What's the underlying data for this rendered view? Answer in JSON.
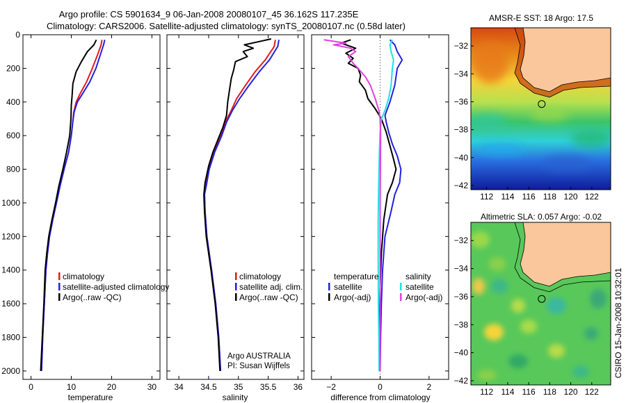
{
  "header": {
    "line1": "Argo profile: CS 5901634_9 06-Jan-2008 20080107_45 36.162S 117.235E",
    "line2": "Climatology: CARS2006. Satellite-adjusted climatology: synTS_20080107.nc (0.58d later)"
  },
  "side_label": "CSIRO 15-Jan-2008 10:32:01",
  "colors": {
    "climatology": "#e31a1c",
    "satellite": "#2020e0",
    "argo": "#000000",
    "salinity_satellite": "#22e0e0",
    "salinity_argo": "#e040e0",
    "land": "#f9c79b"
  },
  "chart_data": [
    {
      "type": "line",
      "panel": "temperature",
      "xlabel": "temperature",
      "ylabel": "",
      "xlim": [
        -2,
        32
      ],
      "ylim": [
        2050,
        0
      ],
      "xticks": [
        0,
        10,
        20,
        30
      ],
      "yticks": [
        0,
        200,
        400,
        600,
        800,
        1000,
        1200,
        1400,
        1600,
        1800,
        2000
      ],
      "legend": [
        "climatology",
        "satellite-adjusted climatology",
        "Argo(..raw -QC)"
      ],
      "series": [
        {
          "name": "climatology",
          "color_key": "climatology",
          "points": [
            [
              17.6,
              30
            ],
            [
              17.4,
              60
            ],
            [
              16.5,
              120
            ],
            [
              15.2,
              200
            ],
            [
              13.8,
              280
            ],
            [
              12.2,
              350
            ],
            [
              11.2,
              400
            ],
            [
              10.6,
              460
            ],
            [
              10.3,
              530
            ],
            [
              10.0,
              600
            ],
            [
              9.3,
              700
            ],
            [
              8.2,
              800
            ],
            [
              7.2,
              900
            ],
            [
              6.3,
              1000
            ],
            [
              5.4,
              1100
            ],
            [
              4.6,
              1200
            ],
            [
              4.1,
              1300
            ],
            [
              3.7,
              1400
            ],
            [
              3.3,
              1600
            ],
            [
              2.9,
              1800
            ],
            [
              2.6,
              2000
            ]
          ]
        },
        {
          "name": "satellite-adjusted climatology",
          "color_key": "satellite",
          "points": [
            [
              18.3,
              30
            ],
            [
              18.0,
              60
            ],
            [
              17.2,
              120
            ],
            [
              16.1,
              200
            ],
            [
              14.6,
              280
            ],
            [
              12.8,
              350
            ],
            [
              11.5,
              400
            ],
            [
              10.7,
              460
            ],
            [
              10.3,
              530
            ],
            [
              10.0,
              600
            ],
            [
              9.3,
              700
            ],
            [
              8.2,
              800
            ],
            [
              7.2,
              900
            ],
            [
              6.3,
              1000
            ],
            [
              5.4,
              1100
            ],
            [
              4.6,
              1200
            ],
            [
              4.1,
              1300
            ],
            [
              3.7,
              1400
            ],
            [
              3.3,
              1600
            ],
            [
              2.9,
              1800
            ],
            [
              2.6,
              2000
            ]
          ]
        },
        {
          "name": "Argo(..raw -QC)",
          "color_key": "argo",
          "points": [
            [
              16.2,
              30
            ],
            [
              15.6,
              60
            ],
            [
              14.0,
              100
            ],
            [
              12.5,
              160
            ],
            [
              11.2,
              220
            ],
            [
              10.4,
              290
            ],
            [
              10.2,
              360
            ],
            [
              10.0,
              420
            ],
            [
              9.9,
              500
            ],
            [
              9.6,
              600
            ],
            [
              8.8,
              700
            ],
            [
              7.9,
              800
            ],
            [
              6.9,
              900
            ],
            [
              6.1,
              1000
            ],
            [
              5.2,
              1100
            ],
            [
              4.4,
              1200
            ],
            [
              3.9,
              1300
            ],
            [
              3.5,
              1400
            ],
            [
              3.2,
              1600
            ],
            [
              2.8,
              1800
            ],
            [
              2.4,
              2000
            ]
          ]
        }
      ]
    },
    {
      "type": "line",
      "panel": "salinity",
      "xlabel": "salinity",
      "xlim": [
        33.8,
        36.1
      ],
      "ylim": [
        2050,
        0
      ],
      "xticks": [
        34,
        34.5,
        35,
        35.5,
        36
      ],
      "legend": [
        "climatology",
        "satellite adj. clim.",
        "Argo(..raw -QC)"
      ],
      "annotation": [
        "Argo AUSTRALIA",
        "PI: Susan Wijffels"
      ],
      "series": [
        {
          "name": "climatology",
          "color_key": "climatology",
          "points": [
            [
              35.62,
              30
            ],
            [
              35.6,
              70
            ],
            [
              35.45,
              150
            ],
            [
              35.28,
              220
            ],
            [
              35.12,
              300
            ],
            [
              34.97,
              380
            ],
            [
              34.88,
              450
            ],
            [
              34.78,
              520
            ],
            [
              34.7,
              600
            ],
            [
              34.58,
              700
            ],
            [
              34.5,
              800
            ],
            [
              34.45,
              900
            ],
            [
              34.43,
              950
            ],
            [
              34.44,
              1050
            ],
            [
              34.47,
              1200
            ],
            [
              34.55,
              1400
            ],
            [
              34.62,
              1600
            ],
            [
              34.67,
              1800
            ],
            [
              34.7,
              2000
            ]
          ]
        },
        {
          "name": "satellite adj. clim.",
          "color_key": "satellite",
          "points": [
            [
              35.68,
              30
            ],
            [
              35.66,
              70
            ],
            [
              35.52,
              150
            ],
            [
              35.35,
              220
            ],
            [
              35.18,
              300
            ],
            [
              35.02,
              380
            ],
            [
              34.9,
              450
            ],
            [
              34.8,
              520
            ],
            [
              34.72,
              600
            ],
            [
              34.6,
              700
            ],
            [
              34.51,
              800
            ],
            [
              34.46,
              900
            ],
            [
              34.43,
              950
            ],
            [
              34.44,
              1050
            ],
            [
              34.47,
              1200
            ],
            [
              34.55,
              1400
            ],
            [
              34.62,
              1600
            ],
            [
              34.67,
              1800
            ],
            [
              34.7,
              2000
            ]
          ]
        },
        {
          "name": "Argo(..raw -QC)",
          "color_key": "argo",
          "points": [
            [
              35.55,
              25
            ],
            [
              35.1,
              60
            ],
            [
              35.25,
              80
            ],
            [
              35.08,
              100
            ],
            [
              35.15,
              130
            ],
            [
              34.95,
              160
            ],
            [
              34.92,
              210
            ],
            [
              34.88,
              260
            ],
            [
              34.85,
              330
            ],
            [
              34.82,
              400
            ],
            [
              34.8,
              480
            ],
            [
              34.74,
              550
            ],
            [
              34.66,
              620
            ],
            [
              34.57,
              700
            ],
            [
              34.5,
              780
            ],
            [
              34.44,
              880
            ],
            [
              34.42,
              950
            ],
            [
              34.43,
              1050
            ],
            [
              34.46,
              1200
            ],
            [
              34.54,
              1400
            ],
            [
              34.61,
              1600
            ],
            [
              34.66,
              1800
            ],
            [
              34.69,
              2000
            ]
          ]
        }
      ]
    },
    {
      "type": "line",
      "panel": "difference",
      "xlabel": "difference from climatology",
      "xlim": [
        -2.8,
        2.8
      ],
      "ylim": [
        2050,
        0
      ],
      "xticks": [
        -2,
        0,
        2
      ],
      "legend_left_title": "temperature",
      "legend_right_title": "salinity",
      "legend": [
        "satellite",
        "Argo(-adj)",
        "satellite",
        "Argo(-adj)"
      ],
      "series": [
        {
          "name": "satellite",
          "color_key": "satellite",
          "points": [
            [
              0.4,
              30
            ],
            [
              0.6,
              60
            ],
            [
              0.7,
              100
            ],
            [
              0.9,
              150
            ],
            [
              0.7,
              200
            ],
            [
              0.6,
              300
            ],
            [
              0.4,
              400
            ],
            [
              0.2,
              480
            ],
            [
              0.25,
              520
            ],
            [
              0.35,
              580
            ],
            [
              0.5,
              650
            ],
            [
              0.7,
              720
            ],
            [
              0.85,
              800
            ],
            [
              0.8,
              880
            ],
            [
              0.6,
              950
            ],
            [
              0.45,
              1050
            ],
            [
              0.2,
              1200
            ],
            [
              0.1,
              1400
            ],
            [
              0.05,
              1600
            ],
            [
              0.02,
              1800
            ],
            [
              0.0,
              2000
            ]
          ]
        },
        {
          "name": "Argo(-adj)",
          "color_key": "argo",
          "points": [
            [
              -1.2,
              30
            ],
            [
              -1.6,
              50
            ],
            [
              -1.0,
              80
            ],
            [
              -1.4,
              110
            ],
            [
              -1.1,
              140
            ],
            [
              -1.3,
              170
            ],
            [
              -0.9,
              200
            ],
            [
              -0.8,
              240
            ],
            [
              -0.85,
              280
            ],
            [
              -0.6,
              330
            ],
            [
              -0.5,
              380
            ],
            [
              -0.2,
              440
            ],
            [
              0.05,
              500
            ],
            [
              0.25,
              580
            ],
            [
              0.4,
              660
            ],
            [
              0.55,
              740
            ],
            [
              0.65,
              800
            ],
            [
              0.5,
              880
            ],
            [
              0.3,
              950
            ],
            [
              0.15,
              1100
            ],
            [
              0.05,
              1300
            ],
            [
              0.0,
              1500
            ],
            [
              -0.02,
              1700
            ],
            [
              -0.03,
              2000
            ]
          ]
        },
        {
          "name": "satellite",
          "color_key": "salinity_satellite",
          "points": [
            [
              0.5,
              30
            ],
            [
              0.4,
              60
            ],
            [
              0.45,
              100
            ],
            [
              0.55,
              150
            ],
            [
              0.5,
              200
            ],
            [
              0.45,
              300
            ],
            [
              0.35,
              380
            ],
            [
              0.2,
              450
            ],
            [
              0.05,
              500
            ],
            [
              0.0,
              580
            ],
            [
              -0.03,
              700
            ],
            [
              -0.06,
              900
            ],
            [
              -0.08,
              1100
            ],
            [
              -0.08,
              1300
            ],
            [
              -0.07,
              1600
            ],
            [
              -0.05,
              1800
            ],
            [
              -0.04,
              2000
            ]
          ]
        },
        {
          "name": "Argo(-adj)",
          "color_key": "salinity_argo",
          "points": [
            [
              -2.3,
              30
            ],
            [
              -1.4,
              50
            ],
            [
              -1.9,
              60
            ],
            [
              -1.2,
              80
            ],
            [
              -1.0,
              100
            ],
            [
              -1.3,
              130
            ],
            [
              -1.1,
              170
            ],
            [
              -0.9,
              200
            ],
            [
              -0.6,
              250
            ],
            [
              -0.4,
              300
            ],
            [
              -0.2,
              380
            ],
            [
              -0.05,
              450
            ],
            [
              0.0,
              500
            ],
            [
              0.02,
              600
            ],
            [
              0.01,
              800
            ],
            [
              0.0,
              1000
            ],
            [
              0.0,
              1400
            ],
            [
              0.0,
              1800
            ],
            [
              0.0,
              2000
            ]
          ]
        }
      ]
    }
  ],
  "maps": [
    {
      "title": "AMSR-E SST: 18 Argo: 17.5",
      "xticks": [
        112,
        114,
        116,
        118,
        120,
        122
      ],
      "yticks": [
        -32,
        -34,
        -36,
        -38,
        -40,
        -42
      ],
      "xlim": [
        110.5,
        123.8
      ],
      "ylim": [
        -42.3,
        -30.7
      ],
      "marker": [
        117.235,
        -36.162
      ]
    },
    {
      "title": "Altimetric SLA: 0.057 Argo: -0.02",
      "xticks": [
        112,
        114,
        116,
        118,
        120,
        122
      ],
      "yticks": [
        -32,
        -34,
        -36,
        -38,
        -40,
        -42
      ],
      "xlim": [
        110.5,
        123.8
      ],
      "ylim": [
        -42.3,
        -30.7
      ],
      "marker": [
        117.235,
        -36.162
      ]
    }
  ]
}
